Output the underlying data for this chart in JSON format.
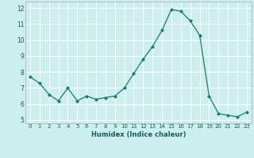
{
  "x": [
    0,
    1,
    2,
    3,
    4,
    5,
    6,
    7,
    8,
    9,
    10,
    11,
    12,
    13,
    14,
    15,
    16,
    17,
    18,
    19,
    20,
    21,
    22,
    23
  ],
  "y": [
    7.7,
    7.3,
    6.6,
    6.2,
    7.0,
    6.2,
    6.5,
    6.3,
    6.4,
    6.5,
    7.0,
    7.9,
    8.8,
    9.6,
    10.6,
    11.9,
    11.8,
    11.2,
    10.3,
    6.5,
    5.4,
    5.3,
    5.2,
    5.5
  ],
  "line_color": "#1a7a6e",
  "marker": "D",
  "marker_size": 2.0,
  "bg_color": "#cceeed",
  "grid_color": "#ffffff",
  "xlabel": "Humidex (Indice chaleur)",
  "ylabel_ticks": [
    5,
    6,
    7,
    8,
    9,
    10,
    11,
    12
  ],
  "xlim": [
    -0.5,
    23.5
  ],
  "ylim": [
    4.8,
    12.4
  ],
  "xtick_labels": [
    "0",
    "1",
    "2",
    "3",
    "4",
    "5",
    "6",
    "7",
    "8",
    "9",
    "10",
    "11",
    "12",
    "13",
    "14",
    "15",
    "16",
    "17",
    "18",
    "19",
    "20",
    "21",
    "22",
    "23"
  ]
}
